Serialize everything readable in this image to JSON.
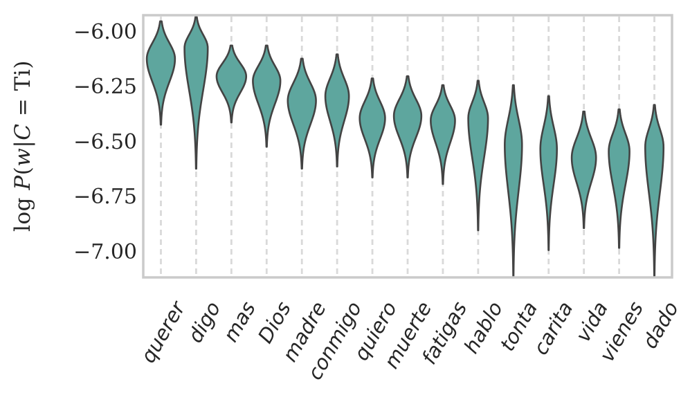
{
  "figure": {
    "background": "#ffffff"
  },
  "chart_data": {
    "type": "violin",
    "title": "",
    "xlabel": "",
    "ylabel": "log P(w|C = Ti)",
    "ylabel_parts": [
      {
        "text": "log ",
        "italic": false
      },
      {
        "text": "P",
        "italic": true
      },
      {
        "text": "(",
        "italic": false
      },
      {
        "text": "w",
        "italic": true
      },
      {
        "text": "|",
        "italic": false
      },
      {
        "text": "C",
        "italic": true
      },
      {
        "text": " = ",
        "italic": false
      },
      {
        "text": "Ti",
        "italic": false
      },
      {
        "text": ")",
        "italic": false
      }
    ],
    "categories": [
      "querer",
      "digo",
      "mas",
      "Dios",
      "madre",
      "conmigo",
      "quiero",
      "muerte",
      "fatigas",
      "hablo",
      "tonta",
      "carita",
      "vida",
      "vienes",
      "dado"
    ],
    "yticks": [
      {
        "value": -6.0,
        "label": "−6.00"
      },
      {
        "value": -6.25,
        "label": "−6.25"
      },
      {
        "value": -6.5,
        "label": "−6.50"
      },
      {
        "value": -6.75,
        "label": "−6.75"
      },
      {
        "value": -7.0,
        "label": "−7.00"
      }
    ],
    "ylim": [
      -7.11,
      -5.92
    ],
    "grid": "vertical-dashed",
    "legend": "none",
    "violins": [
      {
        "label": "querer",
        "max": -5.95,
        "mode": -6.12,
        "min": -6.42,
        "rel_width": 0.8
      },
      {
        "label": "digo",
        "max": -5.93,
        "mode": -6.07,
        "min": -6.62,
        "rel_width": 0.66
      },
      {
        "label": "mas",
        "max": -6.06,
        "mode": -6.2,
        "min": -6.41,
        "rel_width": 0.84
      },
      {
        "label": "Dios",
        "max": -6.06,
        "mode": -6.22,
        "min": -6.52,
        "rel_width": 0.78
      },
      {
        "label": "madre",
        "max": -6.12,
        "mode": -6.31,
        "min": -6.62,
        "rel_width": 0.8
      },
      {
        "label": "conmigo",
        "max": -6.1,
        "mode": -6.29,
        "min": -6.61,
        "rel_width": 0.67
      },
      {
        "label": "quiero",
        "max": -6.21,
        "mode": -6.39,
        "min": -6.66,
        "rel_width": 0.72
      },
      {
        "label": "muerte",
        "max": -6.2,
        "mode": -6.38,
        "min": -6.66,
        "rel_width": 0.78
      },
      {
        "label": "fatigas",
        "max": -6.24,
        "mode": -6.4,
        "min": -6.69,
        "rel_width": 0.69
      },
      {
        "label": "hablo",
        "max": -6.22,
        "mode": -6.39,
        "min": -6.9,
        "rel_width": 0.56
      },
      {
        "label": "tonta",
        "max": -6.24,
        "mode": -6.51,
        "min": -7.11,
        "rel_width": 0.49
      },
      {
        "label": "carita",
        "max": -6.29,
        "mode": -6.53,
        "min": -6.99,
        "rel_width": 0.47
      },
      {
        "label": "vida",
        "max": -6.36,
        "mode": -6.57,
        "min": -6.89,
        "rel_width": 0.69
      },
      {
        "label": "vienes",
        "max": -6.35,
        "mode": -6.54,
        "min": -6.98,
        "rel_width": 0.59
      },
      {
        "label": "dado",
        "max": -6.33,
        "mode": -6.52,
        "min": -7.11,
        "rel_width": 0.52
      }
    ],
    "colors": {
      "fill": "#5ea69e",
      "stroke": "#434343",
      "grid": "#d9d9d9",
      "frame": "#cacaca",
      "text": "#262626"
    }
  }
}
